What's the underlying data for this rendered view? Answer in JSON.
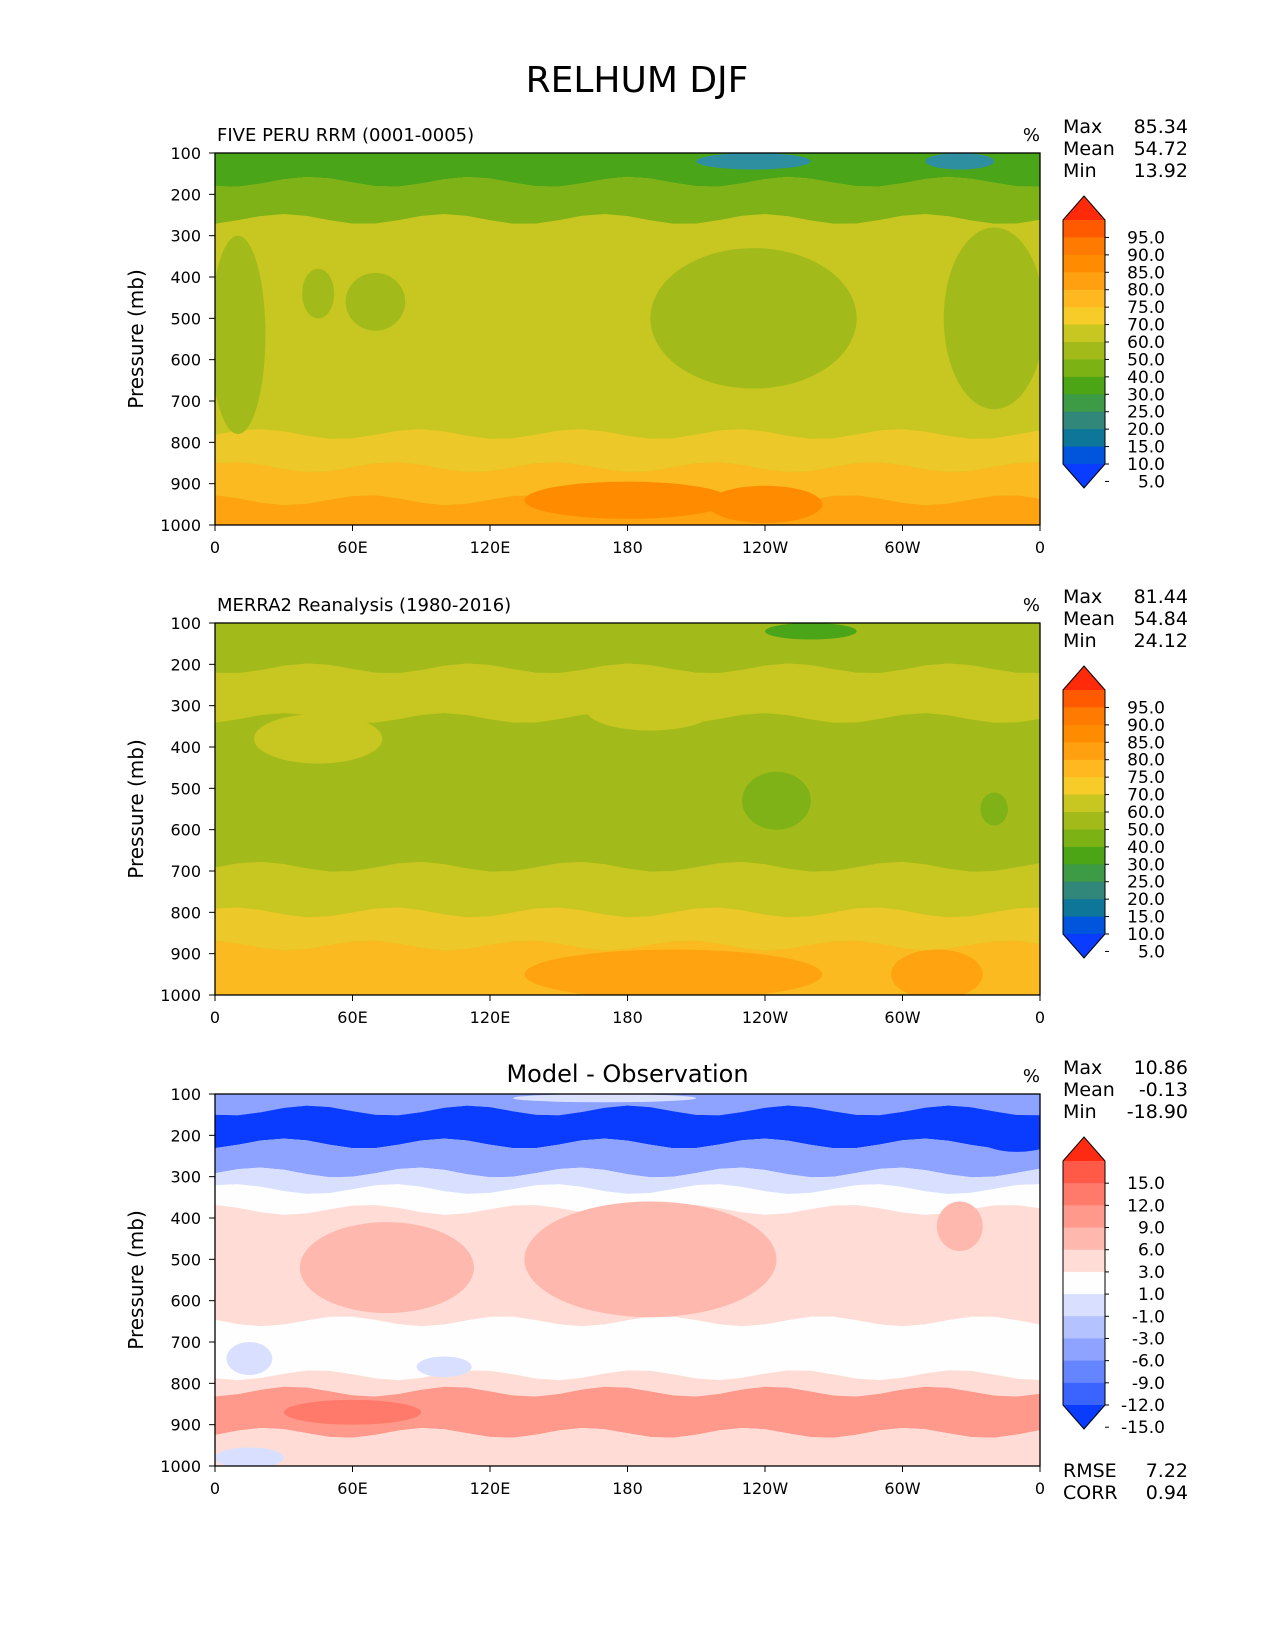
{
  "figure": {
    "title": "RELHUM DJF"
  },
  "chart_data": [
    {
      "type": "heatmap",
      "title": "FIVE PERU RRM (0001-0005)",
      "units": "%",
      "ylabel": "Pressure (mb)",
      "yticks": [
        "100",
        "200",
        "300",
        "400",
        "500",
        "600",
        "700",
        "800",
        "900",
        "1000"
      ],
      "ylim": [
        100,
        1000
      ],
      "xticks": [
        "0",
        "60E",
        "120E",
        "180",
        "120W",
        "60W",
        "0"
      ],
      "xlim": [
        0,
        360
      ],
      "stats": [
        {
          "label": "Max",
          "value": "85.34"
        },
        {
          "label": "Mean",
          "value": "54.72"
        },
        {
          "label": "Min",
          "value": "13.92"
        }
      ],
      "colorbar": {
        "labels": [
          "95.0",
          "90.0",
          "85.0",
          "80.0",
          "75.0",
          "70.0",
          "60.0",
          "50.0",
          "40.0",
          "30.0",
          "25.0",
          "20.0",
          "15.0",
          "10.0",
          "5.0"
        ],
        "colors": [
          "#ff2a0a",
          "#ff5a00",
          "#ff7a00",
          "#ff8c00",
          "#ffa010",
          "#ffb820",
          "#f7cc28",
          "#c8c620",
          "#a3bb1a",
          "#7db215",
          "#4ca514",
          "#3d9a45",
          "#31887a",
          "#0e7799",
          "#0055dd",
          "#0a3cff"
        ]
      },
      "field": {
        "colors": [
          "#2e8fa0",
          "#4aa618",
          "#7fb217",
          "#a3bb1a",
          "#c8c620",
          "#ecc828",
          "#fbba20",
          "#ffa310",
          "#ff8c00"
        ],
        "level_labels": [
          "Max",
          "Mean",
          "Min"
        ],
        "bands": [
          {
            "p": [
              100,
              170
            ],
            "level": 1
          },
          {
            "p": [
              170,
              260
            ],
            "level": 2
          },
          {
            "p": [
              260,
              780
            ],
            "level": 4
          },
          {
            "p": [
              780,
              860
            ],
            "level": 5
          },
          {
            "p": [
              860,
              940
            ],
            "level": 6
          },
          {
            "p": [
              940,
              1000
            ],
            "level": 7
          }
        ],
        "blobs": [
          {
            "lon": 235,
            "p": 500,
            "dlon": 45,
            "dp": 170,
            "level": 3
          },
          {
            "lon": 340,
            "p": 500,
            "dlon": 22,
            "dp": 220,
            "level": 3
          },
          {
            "lon": 10,
            "p": 540,
            "dlon": 12,
            "dp": 240,
            "level": 3
          },
          {
            "lon": 45,
            "p": 440,
            "dlon": 7,
            "dp": 60,
            "level": 3
          },
          {
            "lon": 70,
            "p": 460,
            "dlon": 13,
            "dp": 70,
            "level": 3
          },
          {
            "lon": 235,
            "p": 120,
            "dlon": 25,
            "dp": 20,
            "level": 0
          },
          {
            "lon": 325,
            "p": 120,
            "dlon": 15,
            "dp": 20,
            "level": 0
          },
          {
            "lon": 180,
            "p": 940,
            "dlon": 45,
            "dp": 45,
            "level": 8
          },
          {
            "lon": 240,
            "p": 950,
            "dlon": 25,
            "dp": 45,
            "level": 8
          }
        ]
      }
    },
    {
      "type": "heatmap",
      "title": "MERRA2 Reanalysis (1980-2016)",
      "units": "%",
      "ylabel": "Pressure (mb)",
      "yticks": [
        "100",
        "200",
        "300",
        "400",
        "500",
        "600",
        "700",
        "800",
        "900",
        "1000"
      ],
      "ylim": [
        100,
        1000
      ],
      "xticks": [
        "0",
        "60E",
        "120E",
        "180",
        "120W",
        "60W",
        "0"
      ],
      "xlim": [
        0,
        360
      ],
      "stats": [
        {
          "label": "Max",
          "value": "81.44"
        },
        {
          "label": "Mean",
          "value": "54.84"
        },
        {
          "label": "Min",
          "value": "24.12"
        }
      ],
      "colorbar": {
        "labels": [
          "95.0",
          "90.0",
          "85.0",
          "80.0",
          "75.0",
          "70.0",
          "60.0",
          "50.0",
          "40.0",
          "30.0",
          "25.0",
          "20.0",
          "15.0",
          "10.0",
          "5.0"
        ],
        "colors": [
          "#ff2a0a",
          "#ff5a00",
          "#ff7a00",
          "#ff8c00",
          "#ffa010",
          "#ffb820",
          "#f7cc28",
          "#c8c620",
          "#a3bb1a",
          "#7db215",
          "#4ca514",
          "#3d9a45",
          "#31887a",
          "#0e7799",
          "#0055dd",
          "#0a3cff"
        ]
      },
      "field": {
        "colors": [
          "#2e8fa0",
          "#4aa618",
          "#7fb217",
          "#a3bb1a",
          "#c8c620",
          "#ecc828",
          "#fbba20",
          "#ffa310",
          "#ff8c00"
        ],
        "level_labels": [
          "Max",
          "Mean",
          "Min"
        ],
        "bands": [
          {
            "p": [
              100,
              210
            ],
            "level": 3
          },
          {
            "p": [
              210,
              330
            ],
            "level": 4
          },
          {
            "p": [
              330,
              690
            ],
            "level": 3
          },
          {
            "p": [
              690,
              800
            ],
            "level": 4
          },
          {
            "p": [
              800,
              880
            ],
            "level": 5
          },
          {
            "p": [
              880,
              1000
            ],
            "level": 6
          }
        ],
        "blobs": [
          {
            "lon": 260,
            "p": 120,
            "dlon": 20,
            "dp": 20,
            "level": 1
          },
          {
            "lon": 245,
            "p": 530,
            "dlon": 15,
            "dp": 70,
            "level": 2
          },
          {
            "lon": 340,
            "p": 550,
            "dlon": 6,
            "dp": 40,
            "level": 2
          },
          {
            "lon": 190,
            "p": 310,
            "dlon": 28,
            "dp": 50,
            "level": 4
          },
          {
            "lon": 45,
            "p": 380,
            "dlon": 28,
            "dp": 60,
            "level": 4
          },
          {
            "lon": 200,
            "p": 950,
            "dlon": 65,
            "dp": 60,
            "level": 7
          },
          {
            "lon": 315,
            "p": 950,
            "dlon": 20,
            "dp": 60,
            "level": 7
          }
        ]
      }
    },
    {
      "type": "heatmap",
      "title": "Model - Observation",
      "units": "%",
      "ylabel": "Pressure (mb)",
      "yticks": [
        "100",
        "200",
        "300",
        "400",
        "500",
        "600",
        "700",
        "800",
        "900",
        "1000"
      ],
      "ylim": [
        100,
        1000
      ],
      "xticks": [
        "0",
        "60E",
        "120E",
        "180",
        "120W",
        "60W",
        "0"
      ],
      "xlim": [
        0,
        360
      ],
      "stats": [
        {
          "label": "Max",
          "value": "10.86"
        },
        {
          "label": "Mean",
          "value": "-0.13"
        },
        {
          "label": "Min",
          "value": "-18.90"
        }
      ],
      "extra_stats": [
        {
          "label": "RMSE",
          "value": "7.22"
        },
        {
          "label": "CORR",
          "value": "0.94"
        }
      ],
      "colorbar": {
        "labels": [
          "15.0",
          "12.0",
          "9.0",
          "6.0",
          "3.0",
          "1.0",
          "-1.0",
          "-3.0",
          "-6.0",
          "-9.0",
          "-12.0",
          "-15.0"
        ],
        "colors": [
          "#ff2a12",
          "#ff5a48",
          "#ff7a6a",
          "#ff998c",
          "#ffb8ae",
          "#ffddd6",
          "#fefefe",
          "#d9e0ff",
          "#b4c2ff",
          "#8da3ff",
          "#6584ff",
          "#3b64ff",
          "#0a3cff"
        ]
      },
      "field": {
        "colors": [
          "#0a3cff",
          "#3b64ff",
          "#8da3ff",
          "#d9e0ff",
          "#fefefe",
          "#ffddd6",
          "#ffb8ae",
          "#ff998c",
          "#ff7a6a"
        ],
        "level_labels": [
          "Max",
          "Mean",
          "Min"
        ],
        "bands": [
          {
            "p": [
              100,
              140
            ],
            "level": 2
          },
          {
            "p": [
              140,
              220
            ],
            "level": 0
          },
          {
            "p": [
              220,
              290
            ],
            "level": 2
          },
          {
            "p": [
              290,
              330
            ],
            "level": 3
          },
          {
            "p": [
              330,
              380
            ],
            "level": 4
          },
          {
            "p": [
              380,
              650
            ],
            "level": 5
          },
          {
            "p": [
              650,
              780
            ],
            "level": 4
          },
          {
            "p": [
              780,
              820
            ],
            "level": 5
          },
          {
            "p": [
              820,
              920
            ],
            "level": 7
          },
          {
            "p": [
              920,
              1000
            ],
            "level": 5
          }
        ],
        "blobs": [
          {
            "lon": 190,
            "p": 500,
            "dlon": 55,
            "dp": 140,
            "level": 6
          },
          {
            "lon": 75,
            "p": 520,
            "dlon": 38,
            "dp": 110,
            "level": 6
          },
          {
            "lon": 325,
            "p": 420,
            "dlon": 10,
            "dp": 60,
            "level": 6
          },
          {
            "lon": 60,
            "p": 870,
            "dlon": 30,
            "dp": 30,
            "level": 8
          },
          {
            "lon": 220,
            "p": 760,
            "dlon": 30,
            "dp": 22,
            "level": 4
          },
          {
            "lon": 350,
            "p": 200,
            "dlon": 18,
            "dp": 40,
            "level": 0
          },
          {
            "lon": 170,
            "p": 110,
            "dlon": 40,
            "dp": 10,
            "level": 3
          },
          {
            "lon": 15,
            "p": 740,
            "dlon": 10,
            "dp": 40,
            "level": 3
          },
          {
            "lon": 100,
            "p": 760,
            "dlon": 12,
            "dp": 25,
            "level": 3
          },
          {
            "lon": 15,
            "p": 980,
            "dlon": 15,
            "dp": 25,
            "level": 3
          }
        ]
      }
    }
  ]
}
